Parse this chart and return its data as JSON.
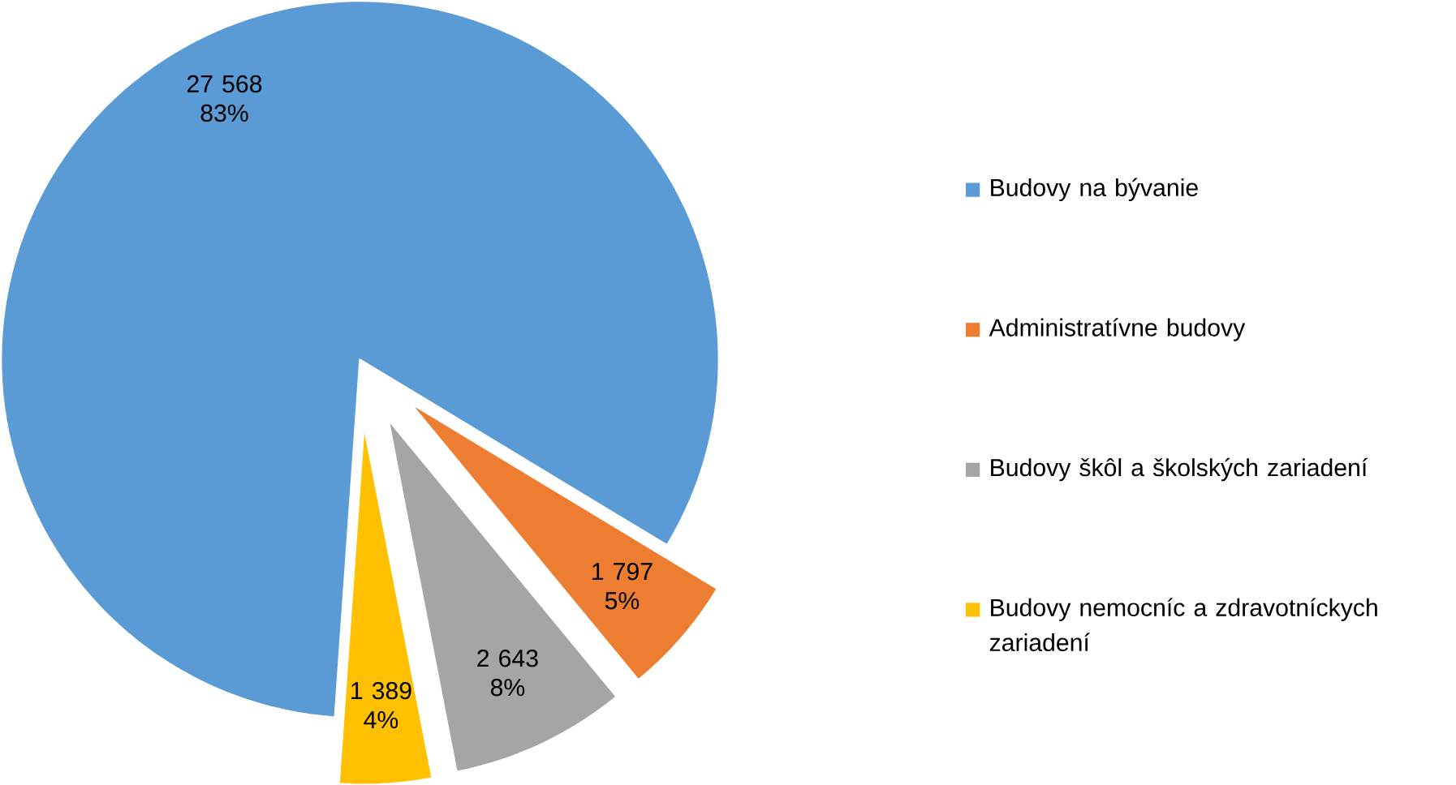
{
  "chart_data": {
    "type": "pie",
    "categories": [
      "Budovy na bývanie",
      "Administratívne budovy",
      "Budovy škôl a školských zariadení",
      "Budovy nemocníc a zdravotníckych zariadení"
    ],
    "values": [
      27568,
      1797,
      2643,
      1389
    ],
    "colors": [
      "#5b9bd5",
      "#ed7d31",
      "#a5a5a5",
      "#ffc000"
    ],
    "value_labels": [
      "27 568 83%",
      "1 797 5%",
      "2 643 8%",
      "1 389 4%"
    ],
    "legend": "right"
  }
}
